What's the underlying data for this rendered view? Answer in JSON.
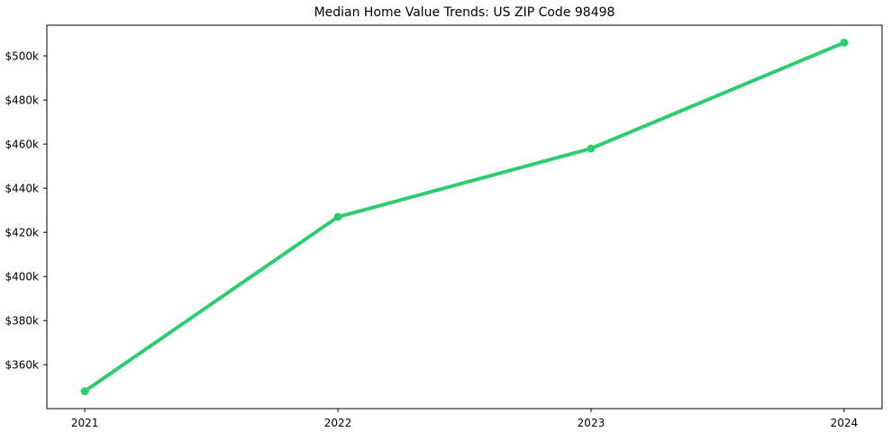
{
  "chart": {
    "title": "Median Home Value Trends: US ZIP Code 98498"
  },
  "chart_data": {
    "type": "line",
    "title": "Median Home Value Trends: US ZIP Code 98498",
    "xlabel": "",
    "ylabel": "",
    "x": [
      2021,
      2022,
      2023,
      2024
    ],
    "values": [
      348000,
      427000,
      458000,
      506000
    ],
    "series_name": "median-home-value",
    "xticks": {
      "values": [
        2021,
        2022,
        2023,
        2024
      ],
      "labels": [
        "2021",
        "2022",
        "2023",
        "2024"
      ]
    },
    "yticks": {
      "values": [
        360000,
        380000,
        400000,
        420000,
        440000,
        460000,
        480000,
        500000
      ],
      "labels": [
        "$360k",
        "$380k",
        "$400k",
        "$420k",
        "$440k",
        "$460k",
        "$480k",
        "$500k"
      ]
    },
    "xlim": [
      2020.85,
      2024.15
    ],
    "ylim": [
      340100,
      513900
    ],
    "grid": false,
    "legend": null,
    "line_color": "#2ecc71",
    "marker": "circle",
    "axis_color": "#000000",
    "text_color": "#000000"
  }
}
